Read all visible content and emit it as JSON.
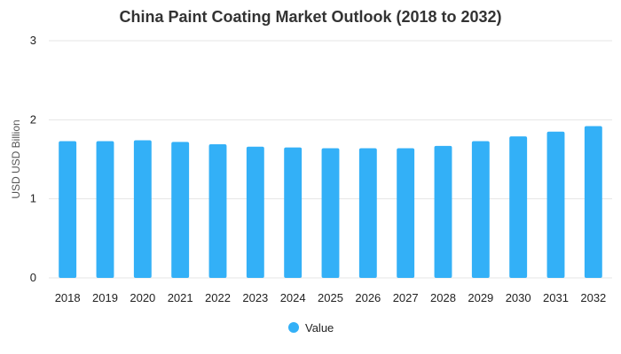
{
  "chart_data": {
    "type": "bar",
    "title": "China Paint Coating Market Outlook (2018 to 2032)",
    "xlabel": "",
    "ylabel": "USD USD Billion",
    "categories": [
      "2018",
      "2019",
      "2020",
      "2021",
      "2022",
      "2023",
      "2024",
      "2025",
      "2026",
      "2027",
      "2028",
      "2029",
      "2030",
      "2031",
      "2032"
    ],
    "series": [
      {
        "name": "Value",
        "values": [
          1.73,
          1.73,
          1.74,
          1.72,
          1.69,
          1.66,
          1.65,
          1.64,
          1.64,
          1.64,
          1.67,
          1.73,
          1.79,
          1.85,
          1.92
        ]
      }
    ],
    "ylim": [
      0,
      3
    ],
    "yticks": [
      "0",
      "1",
      "2",
      "3"
    ],
    "grid": true,
    "legend_position": "bottom",
    "colors": {
      "bar": "#33b0f7",
      "grid": "#e6e6e6",
      "text": "#222222"
    }
  }
}
